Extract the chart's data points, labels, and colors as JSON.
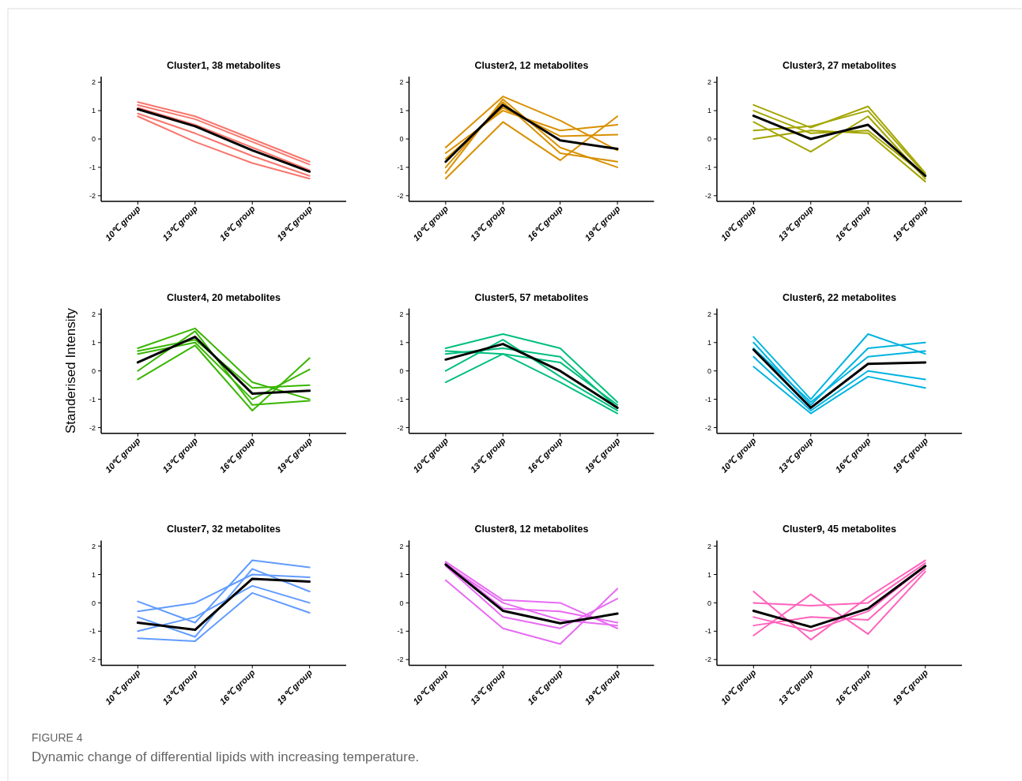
{
  "chart_data": [
    {
      "type": "line",
      "title": "Cluster1, 38 metabolites",
      "categories": [
        "10℃ group",
        "13℃ group",
        "16℃ group",
        "19℃ group"
      ],
      "ylim": [
        -2.2,
        2.2
      ],
      "yticks": [
        -2,
        -1,
        0,
        1,
        2
      ],
      "annotations": [
        "FIGURE 4",
        "Dynamic change of differential lipids with increasing temperature."
      ],
      "series": [
        {
          "color": "#f8766d",
          "values": [
            1.3,
            0.8,
            0,
            -0.8
          ]
        },
        {
          "color": "#f8766d",
          "values": [
            0.8,
            -0.1,
            -0.85,
            -1.4
          ]
        },
        {
          "color": "#f8766d",
          "values": [
            1.1,
            0.5,
            -0.3,
            -1.1
          ]
        },
        {
          "color": "#f8766d",
          "values": [
            0.9,
            0.2,
            -0.6,
            -1.3
          ]
        },
        {
          "color": "#f8766d",
          "values": [
            1.2,
            0.7,
            -0.1,
            -0.9
          ]
        },
        {
          "color": "#000000",
          "values": [
            1.05,
            0.45,
            -0.4,
            -1.15
          ]
        }
      ]
    },
    {
      "type": "line",
      "title": "Cluster2, 12 metabolites",
      "categories": [
        "10℃ group",
        "13℃ group",
        "16℃ group",
        "19℃ group"
      ],
      "ylim": [
        -2.2,
        2.2
      ],
      "yticks": [
        -2,
        -1,
        0,
        1,
        2
      ],
      "series": [
        {
          "color": "#d89000",
          "values": [
            -0.3,
            1.5,
            0.65,
            -0.4
          ]
        },
        {
          "color": "#d89000",
          "values": [
            -1.4,
            0.6,
            -0.75,
            0.8
          ]
        },
        {
          "color": "#d89000",
          "values": [
            -1.2,
            1.4,
            -0.3,
            -1.0
          ]
        },
        {
          "color": "#d89000",
          "values": [
            -0.5,
            1.0,
            0.3,
            0.5
          ]
        },
        {
          "color": "#d89000",
          "values": [
            -1.0,
            1.3,
            -0.5,
            -0.8
          ]
        },
        {
          "color": "#d89000",
          "values": [
            -0.7,
            1.1,
            0.1,
            0.15
          ]
        },
        {
          "color": "#000000",
          "values": [
            -0.8,
            1.2,
            -0.05,
            -0.35
          ]
        }
      ]
    },
    {
      "type": "line",
      "title": "Cluster3, 27 metabolites",
      "categories": [
        "10℃ group",
        "13℃ group",
        "16℃ group",
        "19℃ group"
      ],
      "ylim": [
        -2.2,
        2.2
      ],
      "yticks": [
        -2,
        -1,
        0,
        1,
        2
      ],
      "series": [
        {
          "color": "#a3a500",
          "values": [
            1.2,
            0.4,
            1.15,
            -1.2
          ]
        },
        {
          "color": "#a3a500",
          "values": [
            0.0,
            0.3,
            0.2,
            -1.5
          ]
        },
        {
          "color": "#a3a500",
          "values": [
            0.6,
            -0.45,
            0.8,
            -1.4
          ]
        },
        {
          "color": "#a3a500",
          "values": [
            1.0,
            0.2,
            0.3,
            -1.3
          ]
        },
        {
          "color": "#a3a500",
          "values": [
            0.3,
            0.45,
            1.0,
            -1.25
          ]
        },
        {
          "color": "#000000",
          "values": [
            0.82,
            0.0,
            0.5,
            -1.3
          ]
        }
      ]
    },
    {
      "type": "line",
      "title": "Cluster4, 20 metabolites",
      "ylabel": "Standerised Intensity",
      "categories": [
        "10℃ group",
        "13℃ group",
        "16℃ group",
        "19℃ group"
      ],
      "ylim": [
        -2.2,
        2.2
      ],
      "yticks": [
        -2,
        -1,
        0,
        1,
        2
      ],
      "series": [
        {
          "color": "#39b600",
          "values": [
            0.8,
            1.5,
            -0.4,
            -1.0
          ]
        },
        {
          "color": "#39b600",
          "values": [
            -0.3,
            0.9,
            -1.4,
            0.45
          ]
        },
        {
          "color": "#39b600",
          "values": [
            0.6,
            1.0,
            -1.0,
            0.05
          ]
        },
        {
          "color": "#39b600",
          "values": [
            0.0,
            1.4,
            -1.2,
            -1.05
          ]
        },
        {
          "color": "#39b600",
          "values": [
            0.7,
            1.1,
            -0.6,
            -0.5
          ]
        },
        {
          "color": "#000000",
          "values": [
            0.3,
            1.2,
            -0.8,
            -0.7
          ]
        }
      ]
    },
    {
      "type": "line",
      "title": "Cluster5, 57 metabolites",
      "categories": [
        "10℃ group",
        "13℃ group",
        "16℃ group",
        "19℃ group"
      ],
      "ylim": [
        -2.2,
        2.2
      ],
      "yticks": [
        -2,
        -1,
        0,
        1,
        2
      ],
      "series": [
        {
          "color": "#00bf7d",
          "values": [
            0.8,
            1.3,
            0.8,
            -1.1
          ]
        },
        {
          "color": "#00bf7d",
          "values": [
            -0.4,
            0.6,
            -0.4,
            -1.5
          ]
        },
        {
          "color": "#00bf7d",
          "values": [
            0.7,
            0.6,
            0.3,
            -1.2
          ]
        },
        {
          "color": "#00bf7d",
          "values": [
            0.0,
            1.1,
            -0.2,
            -1.4
          ]
        },
        {
          "color": "#00bf7d",
          "values": [
            0.6,
            0.8,
            0.5,
            -1.3
          ]
        },
        {
          "color": "#000000",
          "values": [
            0.4,
            0.95,
            0.0,
            -1.3
          ]
        }
      ]
    },
    {
      "type": "line",
      "title": "Cluster6, 22 metabolites",
      "categories": [
        "10℃ group",
        "13℃ group",
        "16℃ group",
        "19℃ group"
      ],
      "ylim": [
        -2.2,
        2.2
      ],
      "yticks": [
        -2,
        -1,
        0,
        1,
        2
      ],
      "series": [
        {
          "color": "#00b4e0",
          "values": [
            1.2,
            -1.0,
            1.3,
            0.6
          ]
        },
        {
          "color": "#00b4e0",
          "values": [
            0.15,
            -1.5,
            -0.2,
            -0.6
          ]
        },
        {
          "color": "#00b4e0",
          "values": [
            1.0,
            -1.2,
            0.8,
            1.0
          ]
        },
        {
          "color": "#00b4e0",
          "values": [
            0.5,
            -1.4,
            0.0,
            -0.3
          ]
        },
        {
          "color": "#00b4e0",
          "values": [
            0.8,
            -1.1,
            0.5,
            0.7
          ]
        },
        {
          "color": "#000000",
          "values": [
            0.75,
            -1.3,
            0.25,
            0.3
          ]
        }
      ]
    },
    {
      "type": "line",
      "title": "Cluster7, 32 metabolites",
      "categories": [
        "10℃ group",
        "13℃ group",
        "16℃ group",
        "19℃ group"
      ],
      "ylim": [
        -2.2,
        2.2
      ],
      "yticks": [
        -2,
        -1,
        0,
        1,
        2
      ],
      "series": [
        {
          "color": "#619cff",
          "values": [
            0.05,
            -0.7,
            1.5,
            1.25
          ]
        },
        {
          "color": "#619cff",
          "values": [
            -1.25,
            -1.35,
            0.35,
            -0.35
          ]
        },
        {
          "color": "#619cff",
          "values": [
            -0.3,
            0.0,
            1.0,
            0.9
          ]
        },
        {
          "color": "#619cff",
          "values": [
            -1.0,
            -0.5,
            0.6,
            0.0
          ]
        },
        {
          "color": "#619cff",
          "values": [
            -0.5,
            -1.2,
            1.2,
            0.4
          ]
        },
        {
          "color": "#000000",
          "values": [
            -0.7,
            -0.95,
            0.85,
            0.75
          ]
        }
      ]
    },
    {
      "type": "line",
      "title": "Cluster8, 12 metabolites",
      "categories": [
        "10℃ group",
        "13℃ group",
        "16℃ group",
        "19℃ group"
      ],
      "ylim": [
        -2.2,
        2.2
      ],
      "yticks": [
        -2,
        -1,
        0,
        1,
        2
      ],
      "series": [
        {
          "color": "#e76bf3",
          "values": [
            1.45,
            0.1,
            0.0,
            -0.9
          ]
        },
        {
          "color": "#e76bf3",
          "values": [
            0.8,
            -0.9,
            -1.45,
            0.5
          ]
        },
        {
          "color": "#e76bf3",
          "values": [
            1.3,
            -0.5,
            -0.9,
            0.15
          ]
        },
        {
          "color": "#e76bf3",
          "values": [
            1.4,
            -0.2,
            -0.3,
            -0.7
          ]
        },
        {
          "color": "#e76bf3",
          "values": [
            1.35,
            0.0,
            -0.6,
            -0.8
          ]
        },
        {
          "color": "#000000",
          "values": [
            1.35,
            -0.28,
            -0.72,
            -0.38
          ]
        }
      ]
    },
    {
      "type": "line",
      "title": "Cluster9, 45 metabolites",
      "categories": [
        "10℃ group",
        "13℃ group",
        "16℃ group",
        "19℃ group"
      ],
      "ylim": [
        -2.2,
        2.2
      ],
      "yticks": [
        -2,
        -1,
        0,
        1,
        2
      ],
      "series": [
        {
          "color": "#ff62bc",
          "values": [
            0.4,
            -1.3,
            0.2,
            1.5
          ]
        },
        {
          "color": "#ff62bc",
          "values": [
            -1.15,
            0.3,
            -1.1,
            1.1
          ]
        },
        {
          "color": "#ff62bc",
          "values": [
            0.0,
            -0.1,
            0.0,
            1.4
          ]
        },
        {
          "color": "#ff62bc",
          "values": [
            -0.8,
            -0.5,
            -0.6,
            1.2
          ]
        },
        {
          "color": "#ff62bc",
          "values": [
            -0.5,
            -1.0,
            -0.3,
            1.3
          ]
        },
        {
          "color": "#000000",
          "values": [
            -0.28,
            -0.85,
            -0.2,
            1.3
          ]
        }
      ]
    }
  ]
}
